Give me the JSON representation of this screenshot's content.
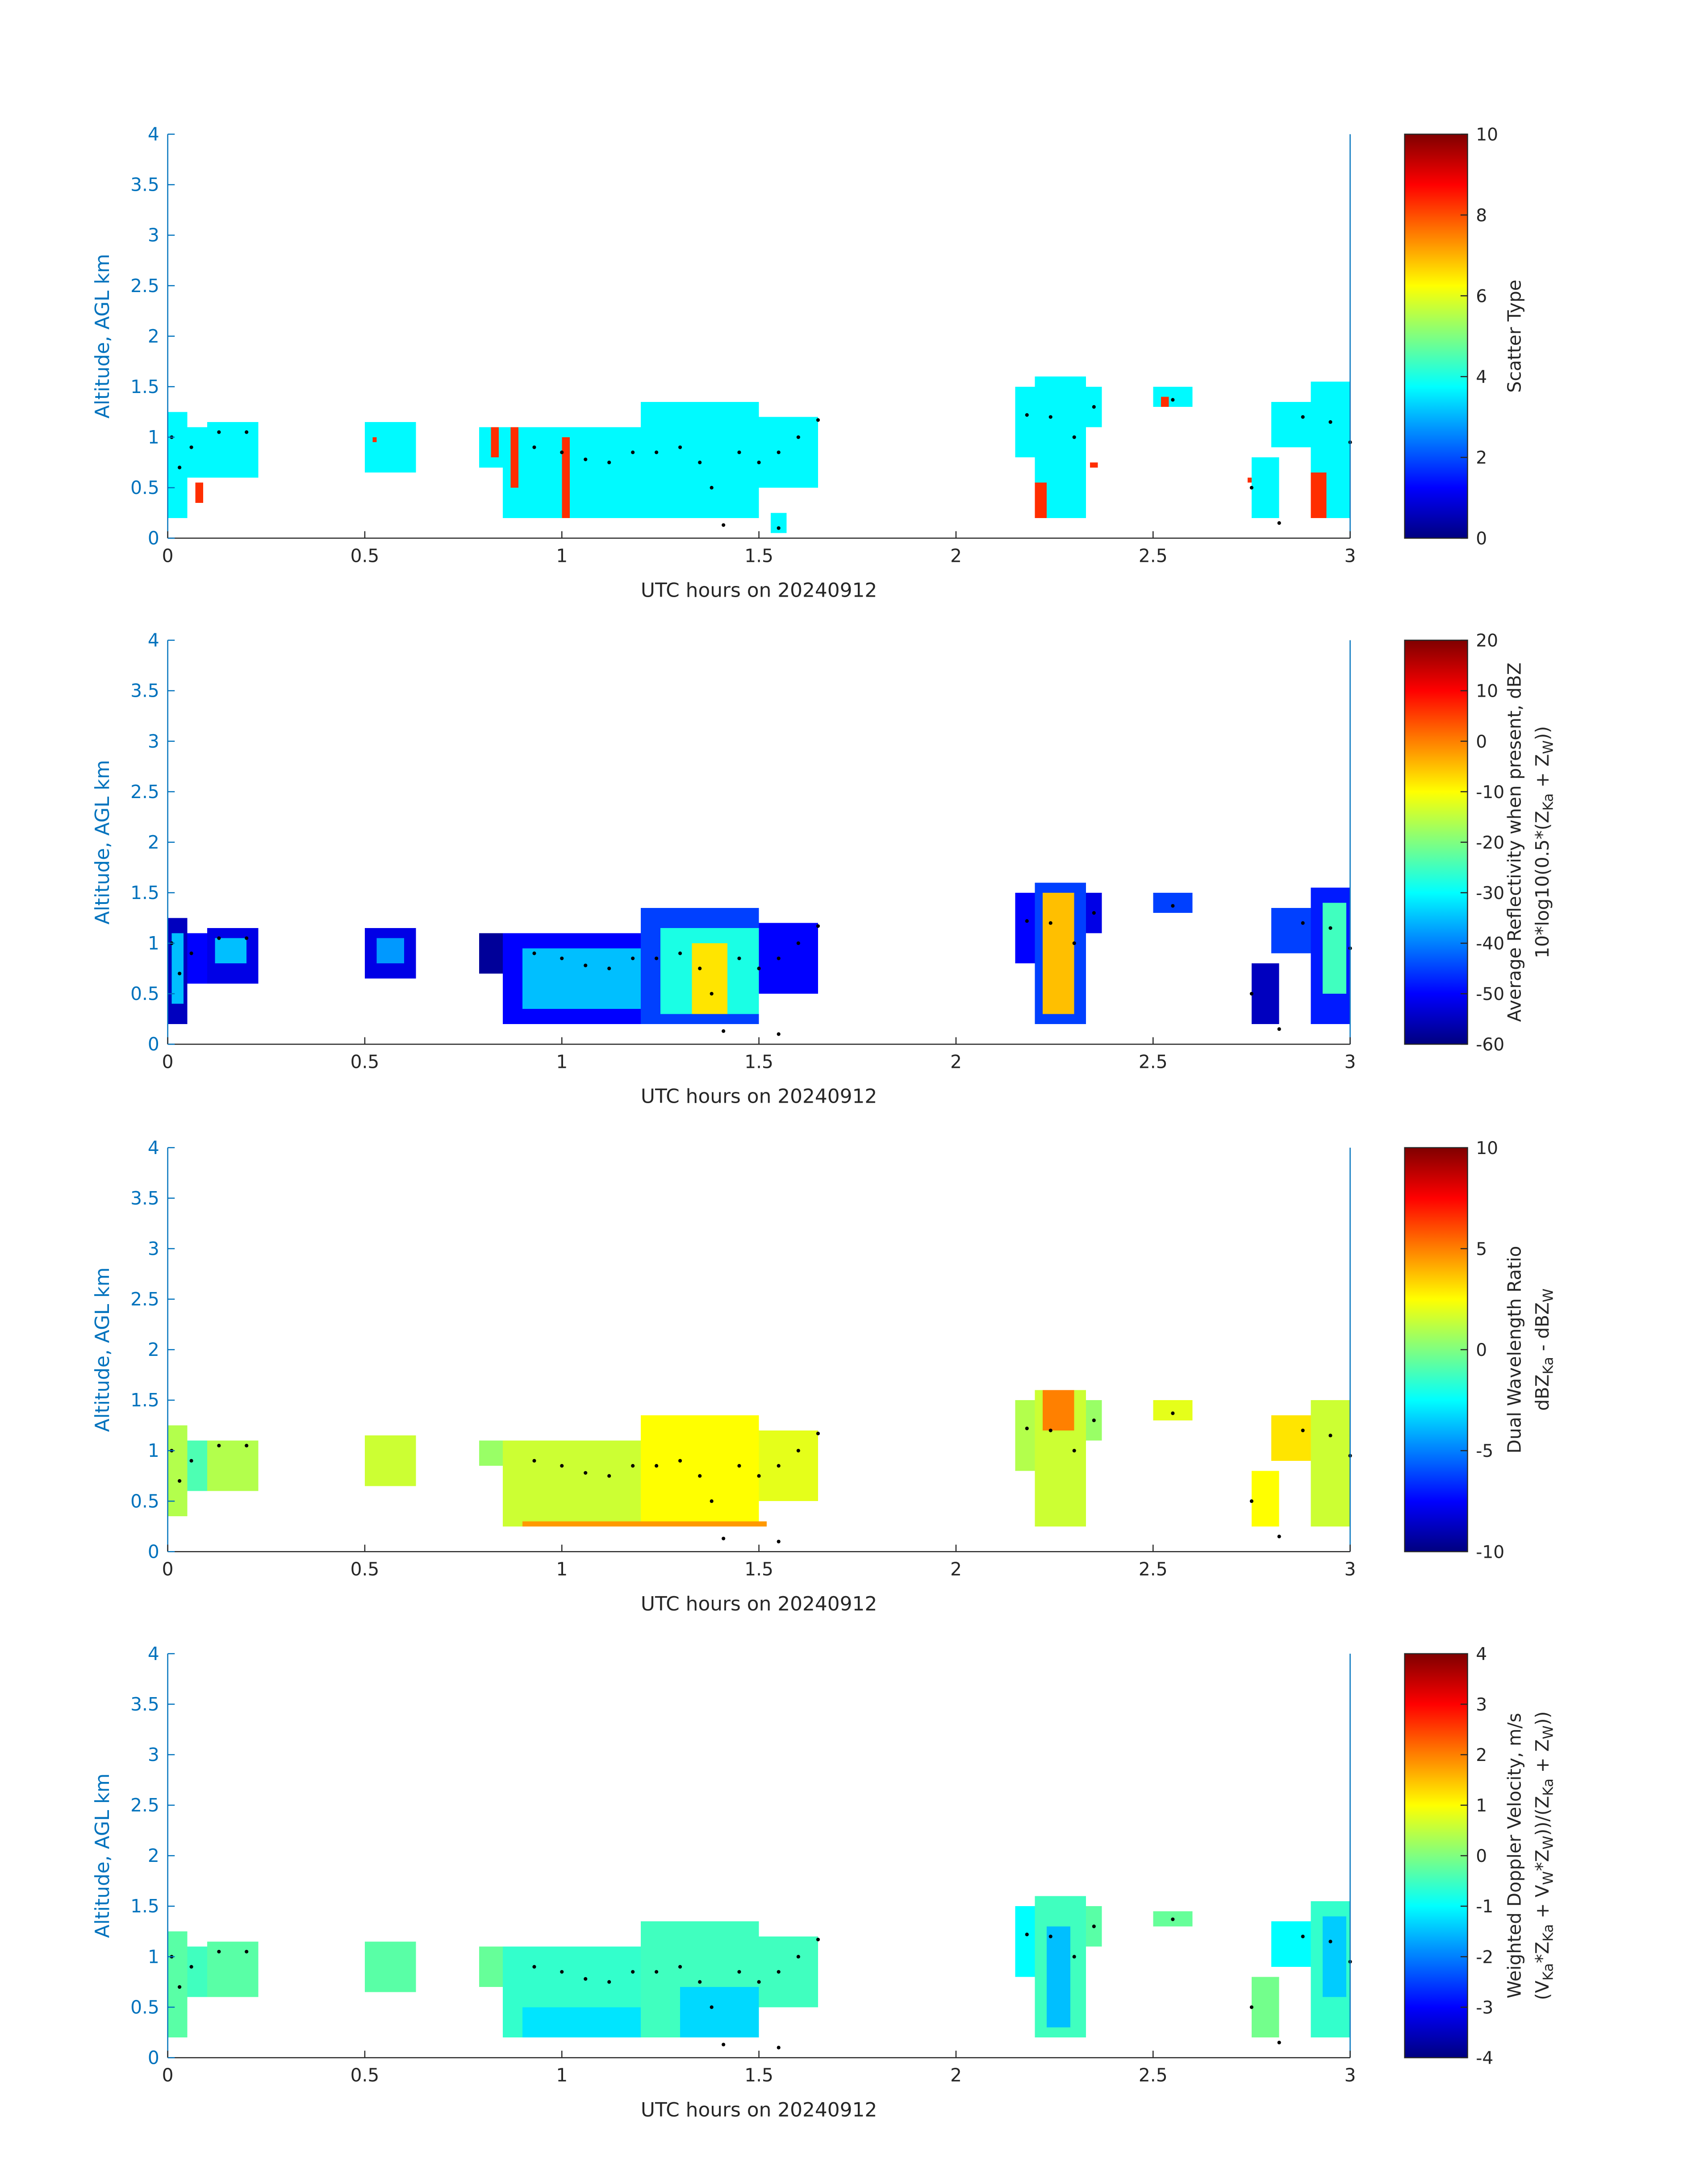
{
  "chart_data": [
    {
      "type": "heatmap",
      "xlabel": "UTC hours on 20240912",
      "ylabel": "Altitude, AGL km",
      "xlim": [
        0,
        3
      ],
      "ylim": [
        0,
        4
      ],
      "xticks": [
        0,
        0.5,
        1,
        1.5,
        2,
        2.5,
        3
      ],
      "yticks": [
        0,
        0.5,
        1,
        1.5,
        2,
        2.5,
        3,
        3.5,
        4
      ],
      "colormap": "jet",
      "clim": [
        0,
        10
      ],
      "cticks": [
        0,
        2,
        4,
        6,
        8,
        10
      ],
      "colorbar_label": [
        [
          "Scatter Type"
        ]
      ],
      "cells": [
        [
          0,
          0.05,
          0.2,
          1.25,
          3.7
        ],
        [
          0.05,
          0.1,
          0.6,
          1.1,
          3.7
        ],
        [
          0.1,
          0.23,
          0.6,
          1.15,
          3.7
        ],
        [
          0.07,
          0.09,
          0.35,
          0.55,
          8.3
        ],
        [
          0.5,
          0.63,
          0.65,
          1.15,
          3.7
        ],
        [
          0.52,
          0.53,
          0.95,
          1.0,
          8.3
        ],
        [
          0.79,
          0.85,
          0.7,
          1.1,
          3.7
        ],
        [
          0.85,
          1.2,
          0.2,
          1.1,
          3.7
        ],
        [
          1.2,
          1.5,
          0.2,
          1.35,
          3.7
        ],
        [
          1.5,
          1.65,
          0.5,
          1.2,
          3.7
        ],
        [
          1.53,
          1.57,
          0.05,
          0.25,
          3.7
        ],
        [
          0.82,
          0.84,
          0.8,
          1.1,
          8.3
        ],
        [
          0.87,
          0.89,
          0.5,
          1.1,
          8.3
        ],
        [
          1.0,
          1.02,
          0.2,
          1.0,
          8.3
        ],
        [
          2.15,
          2.22,
          0.8,
          1.5,
          3.7
        ],
        [
          2.2,
          2.33,
          0.2,
          1.6,
          3.7
        ],
        [
          2.33,
          2.37,
          1.1,
          1.5,
          3.7
        ],
        [
          2.2,
          2.23,
          0.2,
          0.55,
          8.3
        ],
        [
          2.34,
          2.36,
          0.7,
          0.75,
          8.3
        ],
        [
          2.5,
          2.6,
          1.3,
          1.5,
          3.7
        ],
        [
          2.52,
          2.54,
          1.3,
          1.4,
          8.3
        ],
        [
          2.75,
          2.82,
          0.2,
          0.8,
          3.7
        ],
        [
          2.8,
          2.92,
          0.9,
          1.35,
          3.7
        ],
        [
          2.9,
          3.0,
          0.2,
          1.55,
          3.7
        ],
        [
          2.74,
          2.75,
          0.55,
          0.6,
          8.3
        ],
        [
          2.9,
          2.94,
          0.2,
          0.65,
          8.3
        ]
      ],
      "points": {
        "color": "#000000",
        "x": [
          0.01,
          0.03,
          0.06,
          0.13,
          0.2,
          0.93,
          1.0,
          1.06,
          1.12,
          1.18,
          1.24,
          1.3,
          1.35,
          1.38,
          1.41,
          1.45,
          1.5,
          1.55,
          1.6,
          1.65,
          1.55,
          2.18,
          2.24,
          2.3,
          2.35,
          2.55,
          2.75,
          2.82,
          2.88,
          2.95,
          3.0
        ],
        "y": [
          1.0,
          0.7,
          0.9,
          1.05,
          1.05,
          0.9,
          0.85,
          0.78,
          0.75,
          0.85,
          0.85,
          0.9,
          0.75,
          0.5,
          0.13,
          0.85,
          0.75,
          0.85,
          1.0,
          1.17,
          0.1,
          1.22,
          1.2,
          1.0,
          1.3,
          1.37,
          0.5,
          0.15,
          1.2,
          1.15,
          0.95
        ]
      }
    },
    {
      "type": "heatmap",
      "xlabel": "UTC hours on 20240912",
      "ylabel": "Altitude, AGL km",
      "xlim": [
        0,
        3
      ],
      "ylim": [
        0,
        4
      ],
      "xticks": [
        0,
        0.5,
        1,
        1.5,
        2,
        2.5,
        3
      ],
      "yticks": [
        0,
        0.5,
        1,
        1.5,
        2,
        2.5,
        3,
        3.5,
        4
      ],
      "colormap": "jet",
      "clim": [
        -60,
        20
      ],
      "cticks": [
        -60,
        -50,
        -40,
        -30,
        -20,
        -10,
        0,
        10,
        20
      ],
      "colorbar_label": [
        [
          "Average Reflectivity when present, dBZ"
        ],
        [
          "10*log10(0.5*(Z",
          {
            "sub": "Ka"
          },
          " + Z",
          {
            "sub": "W"
          },
          "))"
        ]
      ],
      "cells": [
        [
          0,
          0.05,
          0.2,
          1.25,
          -55
        ],
        [
          0.05,
          0.1,
          0.6,
          1.1,
          -50
        ],
        [
          0.1,
          0.23,
          0.6,
          1.15,
          -52
        ],
        [
          0.01,
          0.04,
          0.4,
          1.1,
          -35
        ],
        [
          0.12,
          0.2,
          0.8,
          1.05,
          -35
        ],
        [
          0.5,
          0.63,
          0.65,
          1.15,
          -52
        ],
        [
          0.53,
          0.6,
          0.8,
          1.05,
          -38
        ],
        [
          0.79,
          0.85,
          0.7,
          1.1,
          -58
        ],
        [
          0.85,
          1.2,
          0.2,
          1.1,
          -50
        ],
        [
          1.2,
          1.5,
          0.2,
          1.35,
          -45
        ],
        [
          1.5,
          1.65,
          0.5,
          1.2,
          -50
        ],
        [
          0.9,
          1.2,
          0.35,
          0.95,
          -35
        ],
        [
          1.25,
          1.5,
          0.3,
          1.15,
          -28
        ],
        [
          1.33,
          1.42,
          0.3,
          1.0,
          -8
        ],
        [
          2.15,
          2.22,
          0.8,
          1.5,
          -50
        ],
        [
          2.2,
          2.33,
          0.2,
          1.6,
          -45
        ],
        [
          2.33,
          2.37,
          1.1,
          1.5,
          -52
        ],
        [
          2.22,
          2.3,
          0.3,
          1.5,
          -5
        ],
        [
          2.5,
          2.6,
          1.3,
          1.5,
          -45
        ],
        [
          2.75,
          2.82,
          0.2,
          0.8,
          -55
        ],
        [
          2.8,
          2.92,
          0.9,
          1.35,
          -45
        ],
        [
          2.9,
          3.0,
          0.2,
          1.55,
          -48
        ],
        [
          2.93,
          2.99,
          0.5,
          1.4,
          -25
        ]
      ],
      "points": {
        "color": "#000000",
        "x": [
          0.01,
          0.03,
          0.06,
          0.13,
          0.2,
          0.93,
          1.0,
          1.06,
          1.12,
          1.18,
          1.24,
          1.3,
          1.35,
          1.38,
          1.41,
          1.45,
          1.5,
          1.55,
          1.6,
          1.65,
          1.55,
          2.18,
          2.24,
          2.3,
          2.35,
          2.55,
          2.75,
          2.82,
          2.88,
          2.95,
          3.0
        ],
        "y": [
          1.0,
          0.7,
          0.9,
          1.05,
          1.05,
          0.9,
          0.85,
          0.78,
          0.75,
          0.85,
          0.85,
          0.9,
          0.75,
          0.5,
          0.13,
          0.85,
          0.75,
          0.85,
          1.0,
          1.17,
          0.1,
          1.22,
          1.2,
          1.0,
          1.3,
          1.37,
          0.5,
          0.15,
          1.2,
          1.15,
          0.95
        ]
      }
    },
    {
      "type": "heatmap",
      "xlabel": "UTC hours on 20240912",
      "ylabel": "Altitude, AGL km",
      "xlim": [
        0,
        3
      ],
      "ylim": [
        0,
        4
      ],
      "xticks": [
        0,
        0.5,
        1,
        1.5,
        2,
        2.5,
        3
      ],
      "yticks": [
        0,
        0.5,
        1,
        1.5,
        2,
        2.5,
        3,
        3.5,
        4
      ],
      "colormap": "jet",
      "clim": [
        -10,
        10
      ],
      "cticks": [
        -10,
        -5,
        0,
        5,
        10
      ],
      "colorbar_label": [
        [
          "Dual Wavelength Ratio"
        ],
        [
          "dBZ",
          {
            "sub": "Ka"
          },
          " - dBZ",
          {
            "sub": "W"
          }
        ]
      ],
      "cells": [
        [
          0,
          0.05,
          0.35,
          1.25,
          1
        ],
        [
          0.05,
          0.1,
          0.6,
          1.1,
          -1
        ],
        [
          0.1,
          0.23,
          0.6,
          1.1,
          1
        ],
        [
          0.5,
          0.63,
          0.65,
          1.15,
          1.5
        ],
        [
          0.79,
          0.85,
          0.85,
          1.1,
          0.5
        ],
        [
          0.85,
          1.2,
          0.25,
          1.1,
          1.5
        ],
        [
          1.2,
          1.5,
          0.25,
          1.35,
          2.5
        ],
        [
          1.5,
          1.65,
          0.5,
          1.2,
          2
        ],
        [
          0.9,
          1.52,
          0.25,
          0.3,
          4.5
        ],
        [
          2.15,
          2.22,
          0.8,
          1.5,
          1
        ],
        [
          2.2,
          2.33,
          0.25,
          1.6,
          1.5
        ],
        [
          2.33,
          2.37,
          1.1,
          1.5,
          0.5
        ],
        [
          2.22,
          2.3,
          1.2,
          1.6,
          5
        ],
        [
          2.5,
          2.6,
          1.3,
          1.5,
          2
        ],
        [
          2.75,
          2.82,
          0.25,
          0.8,
          2.5
        ],
        [
          2.8,
          2.92,
          0.9,
          1.35,
          3
        ],
        [
          2.9,
          3.0,
          0.25,
          1.5,
          1.5
        ]
      ],
      "points": {
        "color": "#000000",
        "x": [
          0.01,
          0.03,
          0.06,
          0.13,
          0.2,
          0.93,
          1.0,
          1.06,
          1.12,
          1.18,
          1.24,
          1.3,
          1.35,
          1.38,
          1.41,
          1.45,
          1.5,
          1.55,
          1.6,
          1.65,
          1.55,
          2.18,
          2.24,
          2.3,
          2.35,
          2.55,
          2.75,
          2.82,
          2.88,
          2.95,
          3.0
        ],
        "y": [
          1.0,
          0.7,
          0.9,
          1.05,
          1.05,
          0.9,
          0.85,
          0.78,
          0.75,
          0.85,
          0.85,
          0.9,
          0.75,
          0.5,
          0.13,
          0.85,
          0.75,
          0.85,
          1.0,
          1.17,
          0.1,
          1.22,
          1.2,
          1.0,
          1.3,
          1.37,
          0.5,
          0.15,
          1.2,
          1.15,
          0.95
        ]
      }
    },
    {
      "type": "heatmap",
      "xlabel": "UTC hours on 20240912",
      "ylabel": "Altitude, AGL km",
      "xlim": [
        0,
        3
      ],
      "ylim": [
        0,
        4
      ],
      "xticks": [
        0,
        0.5,
        1,
        1.5,
        2,
        2.5,
        3
      ],
      "yticks": [
        0,
        0.5,
        1,
        1.5,
        2,
        2.5,
        3,
        3.5,
        4
      ],
      "colormap": "jet",
      "clim": [
        -4,
        4
      ],
      "cticks": [
        -4,
        -3,
        -2,
        -1,
        0,
        1,
        2,
        3,
        4
      ],
      "colorbar_label": [
        [
          "Weighted Doppler Velocity, m/s"
        ],
        [
          "(V",
          {
            "sub": "Ka"
          },
          "*Z",
          {
            "sub": "Ka"
          },
          " + V",
          {
            "sub": "W"
          },
          "*Z",
          {
            "sub": "W"
          },
          "))/(Z",
          {
            "sub": "Ka"
          },
          " + Z",
          {
            "sub": "W"
          },
          "))"
        ]
      ],
      "cells": [
        [
          0,
          0.05,
          0.2,
          1.25,
          -0.3
        ],
        [
          0.05,
          0.1,
          0.6,
          1.1,
          -0.5
        ],
        [
          0.1,
          0.23,
          0.6,
          1.15,
          -0.3
        ],
        [
          0.5,
          0.63,
          0.65,
          1.15,
          -0.3
        ],
        [
          0.79,
          0.85,
          0.7,
          1.1,
          -0.2
        ],
        [
          0.85,
          1.2,
          0.2,
          1.1,
          -0.6
        ],
        [
          0.9,
          1.2,
          0.2,
          0.5,
          -1.2
        ],
        [
          1.2,
          1.5,
          0.2,
          1.35,
          -0.5
        ],
        [
          1.3,
          1.5,
          0.2,
          0.7,
          -1.3
        ],
        [
          1.5,
          1.65,
          0.5,
          1.2,
          -0.5
        ],
        [
          2.15,
          2.22,
          0.8,
          1.5,
          -1
        ],
        [
          2.2,
          2.33,
          0.2,
          1.6,
          -0.5
        ],
        [
          2.23,
          2.29,
          0.3,
          1.3,
          -1.5
        ],
        [
          2.33,
          2.37,
          1.1,
          1.5,
          -0.3
        ],
        [
          2.5,
          2.6,
          1.3,
          1.45,
          -0.2
        ],
        [
          2.75,
          2.82,
          0.2,
          0.8,
          -0.1
        ],
        [
          2.8,
          2.92,
          0.9,
          1.35,
          -1
        ],
        [
          2.9,
          3.0,
          0.2,
          1.55,
          -0.6
        ],
        [
          2.93,
          2.99,
          0.6,
          1.4,
          -1.4
        ]
      ],
      "points": {
        "color": "#000000",
        "x": [
          0.01,
          0.03,
          0.06,
          0.13,
          0.2,
          0.93,
          1.0,
          1.06,
          1.12,
          1.18,
          1.24,
          1.3,
          1.35,
          1.38,
          1.41,
          1.45,
          1.5,
          1.55,
          1.6,
          1.65,
          1.55,
          2.18,
          2.24,
          2.3,
          2.35,
          2.55,
          2.75,
          2.82,
          2.88,
          2.95,
          3.0
        ],
        "y": [
          1.0,
          0.7,
          0.9,
          1.05,
          1.05,
          0.9,
          0.85,
          0.78,
          0.75,
          0.85,
          0.85,
          0.9,
          0.75,
          0.5,
          0.13,
          0.85,
          0.75,
          0.85,
          1.0,
          1.17,
          0.1,
          1.22,
          1.2,
          1.0,
          1.3,
          1.37,
          0.5,
          0.15,
          1.2,
          1.15,
          0.95
        ]
      }
    }
  ]
}
